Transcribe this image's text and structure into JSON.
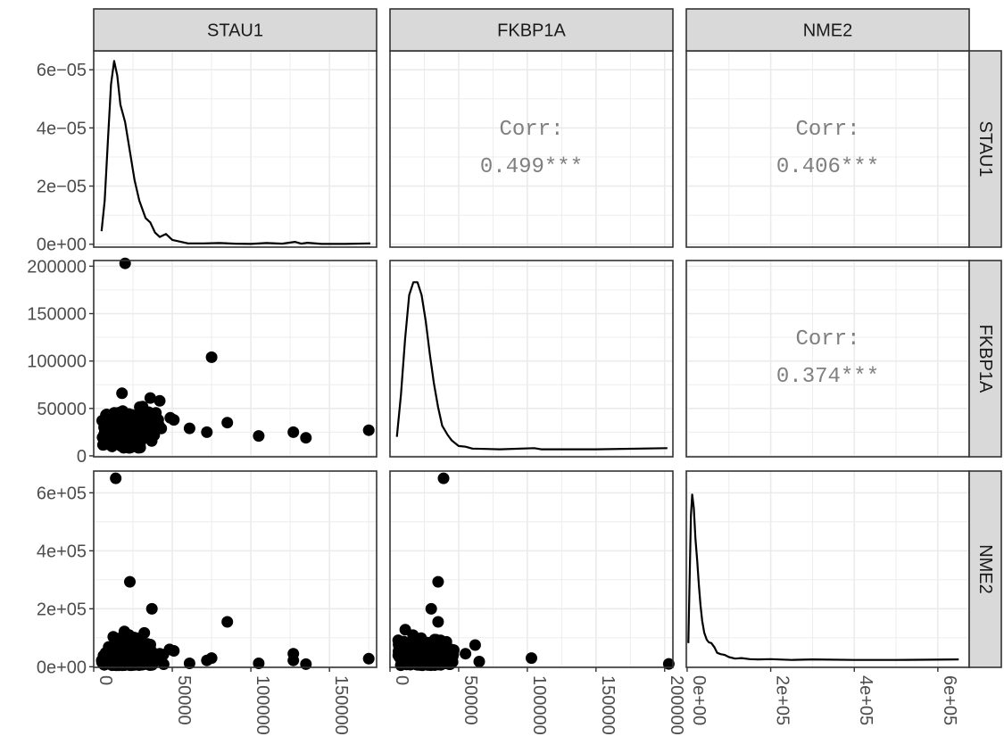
{
  "chart_data": {
    "type": "scatter",
    "variables": [
      "STAU1",
      "FKBP1A",
      "NME2"
    ],
    "column_strips": [
      "STAU1",
      "FKBP1A",
      "NME2"
    ],
    "row_strips": [
      "STAU1",
      "FKBP1A",
      "NME2"
    ],
    "correlation_label": "Corr:",
    "correlations": [
      {
        "row": 0,
        "col": 1,
        "pair": [
          "STAU1",
          "FKBP1A"
        ],
        "value": "0.499***"
      },
      {
        "row": 0,
        "col": 2,
        "pair": [
          "STAU1",
          "NME2"
        ],
        "value": "0.406***"
      },
      {
        "row": 1,
        "col": 2,
        "pair": [
          "FKBP1A",
          "NME2"
        ],
        "value": "0.374***"
      }
    ],
    "axes": {
      "x": [
        {
          "var": "STAU1",
          "range": [
            0,
            180000
          ],
          "ticks": [
            0,
            50000,
            100000,
            150000
          ],
          "tick_labels": [
            "0",
            "50000",
            "100000",
            "150000"
          ]
        },
        {
          "var": "FKBP1A",
          "range": [
            0,
            206000
          ],
          "ticks": [
            0,
            50000,
            100000,
            150000,
            200000
          ],
          "tick_labels": [
            "0",
            "50000",
            "100000",
            "150000",
            "200000"
          ]
        },
        {
          "var": "NME2",
          "range": [
            -2000,
            675000
          ],
          "ticks": [
            0,
            200000,
            400000,
            600000
          ],
          "tick_labels": [
            "0e+00",
            "2e+05",
            "4e+05",
            "6e+05"
          ]
        }
      ],
      "y": [
        {
          "var": "STAU1 density",
          "range": [
            -1e-06,
            6.65e-05
          ],
          "ticks": [
            0,
            2e-05,
            4e-05,
            6e-05
          ],
          "tick_labels": [
            "0e+00",
            "2e−05",
            "4e−05",
            "6e−05"
          ]
        },
        {
          "var": "FKBP1A",
          "range": [
            -1000,
            206000
          ],
          "ticks": [
            0,
            50000,
            100000,
            150000,
            200000
          ],
          "tick_labels": [
            "0",
            "50000",
            "100000",
            "150000",
            "200000"
          ]
        },
        {
          "var": "NME2",
          "range": [
            -2000,
            675000
          ],
          "ticks": [
            0,
            200000,
            400000,
            600000
          ],
          "tick_labels": [
            "0e+00",
            "2e+05",
            "4e+05",
            "6e+05"
          ]
        }
      ]
    },
    "densities": [
      {
        "var": "STAU1",
        "points": [
          [
            5000,
            4.5e-06
          ],
          [
            7000,
            1.5e-05
          ],
          [
            9000,
            3.5e-05
          ],
          [
            11000,
            5.5e-05
          ],
          [
            13000,
            6.3e-05
          ],
          [
            15000,
            5.8e-05
          ],
          [
            17000,
            4.8e-05
          ],
          [
            20000,
            4.2e-05
          ],
          [
            23000,
            3.2e-05
          ],
          [
            26000,
            2.2e-05
          ],
          [
            29000,
            1.5e-05
          ],
          [
            33000,
            9e-06
          ],
          [
            36000,
            7.5e-06
          ],
          [
            39000,
            4e-06
          ],
          [
            42000,
            2.5e-06
          ],
          [
            46000,
            3.5e-06
          ],
          [
            50000,
            1.5e-06
          ],
          [
            60000,
            3e-07
          ],
          [
            70000,
            3e-07
          ],
          [
            80000,
            4e-07
          ],
          [
            90000,
            2e-07
          ],
          [
            100000,
            1e-07
          ],
          [
            110000,
            4e-07
          ],
          [
            120000,
            2e-07
          ],
          [
            128000,
            8e-07
          ],
          [
            132000,
            2e-07
          ],
          [
            136000,
            5e-07
          ],
          [
            145000,
            1e-07
          ],
          [
            160000,
            1e-07
          ],
          [
            176000,
            3e-07
          ]
        ]
      },
      {
        "var": "FKBP1A",
        "points": [
          [
            5000,
            3.5e-06
          ],
          [
            8000,
            1.5e-05
          ],
          [
            11000,
            3e-05
          ],
          [
            14000,
            4.2e-05
          ],
          [
            17000,
            4.55e-05
          ],
          [
            20000,
            4.55e-05
          ],
          [
            23000,
            4.2e-05
          ],
          [
            26000,
            3.5e-05
          ],
          [
            29000,
            2.6e-05
          ],
          [
            32000,
            1.8e-05
          ],
          [
            35000,
            1.15e-05
          ],
          [
            38000,
            6.5e-06
          ],
          [
            42000,
            4e-06
          ],
          [
            45000,
            2.5e-06
          ],
          [
            50000,
            1e-06
          ],
          [
            55000,
            8e-07
          ],
          [
            60000,
            3e-07
          ],
          [
            70000,
            2e-07
          ],
          [
            80000,
            1e-07
          ],
          [
            105000,
            4e-07
          ],
          [
            110000,
            1e-07
          ],
          [
            150000,
            1e-07
          ],
          [
            202000,
            4e-07
          ]
        ]
      },
      {
        "var": "NME2",
        "points": [
          [
            3000,
            6.5e-06
          ],
          [
            6000,
            3e-05
          ],
          [
            9000,
            5.5e-05
          ],
          [
            12000,
            6.3e-05
          ],
          [
            16000,
            5.8e-05
          ],
          [
            20000,
            4.6e-05
          ],
          [
            24000,
            3.8e-05
          ],
          [
            28000,
            2.9e-05
          ],
          [
            32000,
            2.1e-05
          ],
          [
            36000,
            1.5e-05
          ],
          [
            41000,
            1.05e-05
          ],
          [
            47000,
            7.8e-06
          ],
          [
            52000,
            6.8e-06
          ],
          [
            58000,
            6.5e-06
          ],
          [
            65000,
            5e-06
          ],
          [
            72000,
            2.8e-06
          ],
          [
            80000,
            2.3e-06
          ],
          [
            90000,
            2e-06
          ],
          [
            100000,
            1.2e-06
          ],
          [
            115000,
            6e-07
          ],
          [
            130000,
            8e-07
          ],
          [
            150000,
            4e-07
          ],
          [
            170000,
            3e-07
          ],
          [
            200000,
            4e-07
          ],
          [
            250000,
            1e-07
          ],
          [
            300000,
            3e-07
          ],
          [
            400000,
            1e-07
          ],
          [
            500000,
            1e-07
          ],
          [
            650000,
            3e-07
          ]
        ]
      }
    ],
    "scatter_outliers": {
      "STAU1_vs_FKBP1A": [
        [
          20000,
          203000
        ],
        [
          75000,
          104000
        ],
        [
          61000,
          29000
        ],
        [
          72000,
          25000
        ],
        [
          85000,
          35000
        ],
        [
          105000,
          21000
        ],
        [
          127000,
          25000
        ],
        [
          135000,
          19000
        ],
        [
          175000,
          27000
        ],
        [
          36000,
          61000
        ],
        [
          42000,
          58000
        ],
        [
          51000,
          38000
        ],
        [
          18000,
          66000
        ]
      ],
      "STAU1_vs_NME2": [
        [
          14000,
          650000
        ],
        [
          23000,
          293000
        ],
        [
          37000,
          200000
        ],
        [
          85000,
          155000
        ],
        [
          61000,
          12000
        ],
        [
          72000,
          22000
        ],
        [
          75000,
          30000
        ],
        [
          105000,
          12000
        ],
        [
          127000,
          45000
        ],
        [
          127000,
          22000
        ],
        [
          135000,
          9000
        ],
        [
          175000,
          28000
        ],
        [
          51000,
          55000
        ],
        [
          42000,
          45000
        ]
      ],
      "FKBP1A_vs_NME2": [
        [
          39000,
          650000
        ],
        [
          35000,
          293000
        ],
        [
          30000,
          200000
        ],
        [
          35000,
          155000
        ],
        [
          103000,
          30000
        ],
        [
          203000,
          10000
        ],
        [
          62000,
          75000
        ],
        [
          55000,
          45000
        ],
        [
          65000,
          18000
        ],
        [
          45000,
          58000
        ],
        [
          9000,
          40000
        ]
      ]
    },
    "scatter_clusters": {
      "STAU1_vs_FKBP1A": {
        "x_center": 23000,
        "x_spread": 8000,
        "y_center": 27000,
        "y_spread": 9000,
        "n": 320,
        "x_min": 5000,
        "y_min": 8000
      },
      "STAU1_vs_NME2": {
        "x_center": 23000,
        "x_spread": 8000,
        "y_center": 40000,
        "y_spread": 25000,
        "n": 320,
        "x_min": 5000,
        "y_min": 5000
      },
      "FKBP1A_vs_NME2": {
        "x_center": 25000,
        "x_spread": 9000,
        "y_center": 40000,
        "y_spread": 25000,
        "n": 320,
        "x_min": 5000,
        "y_min": 5000
      }
    },
    "grid": true,
    "theme": "bw"
  }
}
